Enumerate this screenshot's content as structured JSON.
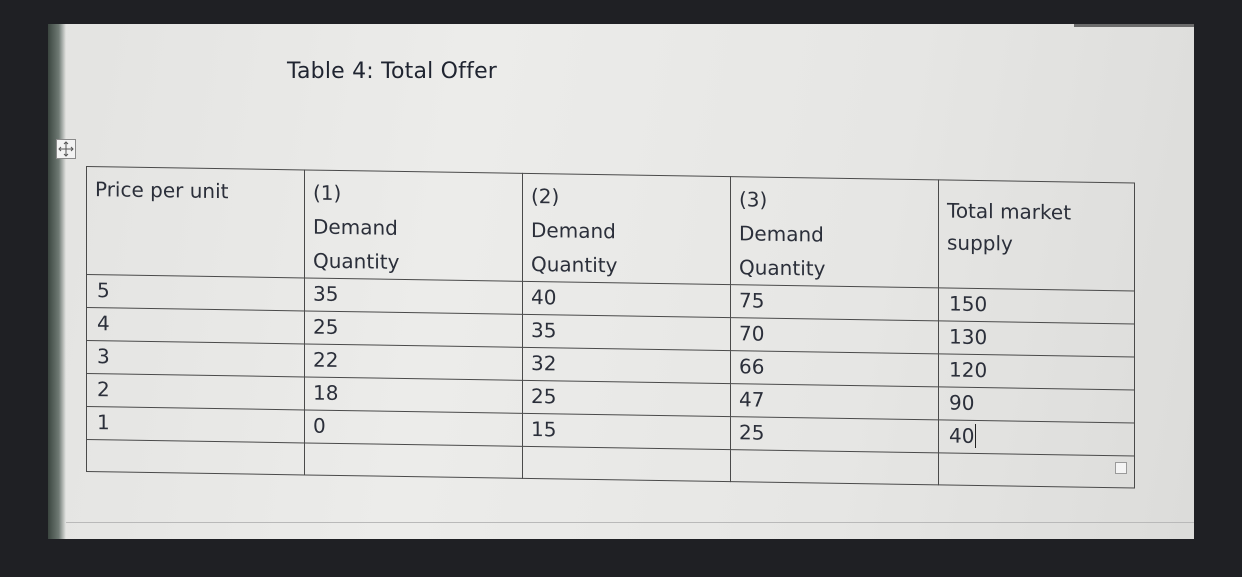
{
  "document": {
    "title": "Table 4: Total Offer"
  },
  "table": {
    "headers": [
      [
        "Price per unit"
      ],
      [
        "(1)",
        "Demand",
        "Quantity"
      ],
      [
        "(2)",
        "Demand",
        "Quantity"
      ],
      [
        "(3)",
        "Demand",
        "Quantity"
      ],
      [
        "Total market",
        "supply"
      ]
    ],
    "rows": [
      {
        "price": "5",
        "q1": "35",
        "q2": "40",
        "q3": "75",
        "total": "150"
      },
      {
        "price": "4",
        "q1": "25",
        "q2": "35",
        "q3": "70",
        "total": "130"
      },
      {
        "price": "3",
        "q1": "22",
        "q2": "32",
        "q3": "66",
        "total": "120"
      },
      {
        "price": "2",
        "q1": "18",
        "q2": "25",
        "q3": "47",
        "total": "90"
      },
      {
        "price": "1",
        "q1": "0",
        "q2": "15",
        "q3": "25",
        "total": "40"
      }
    ]
  },
  "icons": {
    "move_handle": "table-move-icon",
    "resize_handle": "table-resize-icon"
  },
  "colors": {
    "background": "#1f2024",
    "paper": "#e7e7e5",
    "text": "#2b2f3a",
    "border": "#4a4a4a"
  }
}
